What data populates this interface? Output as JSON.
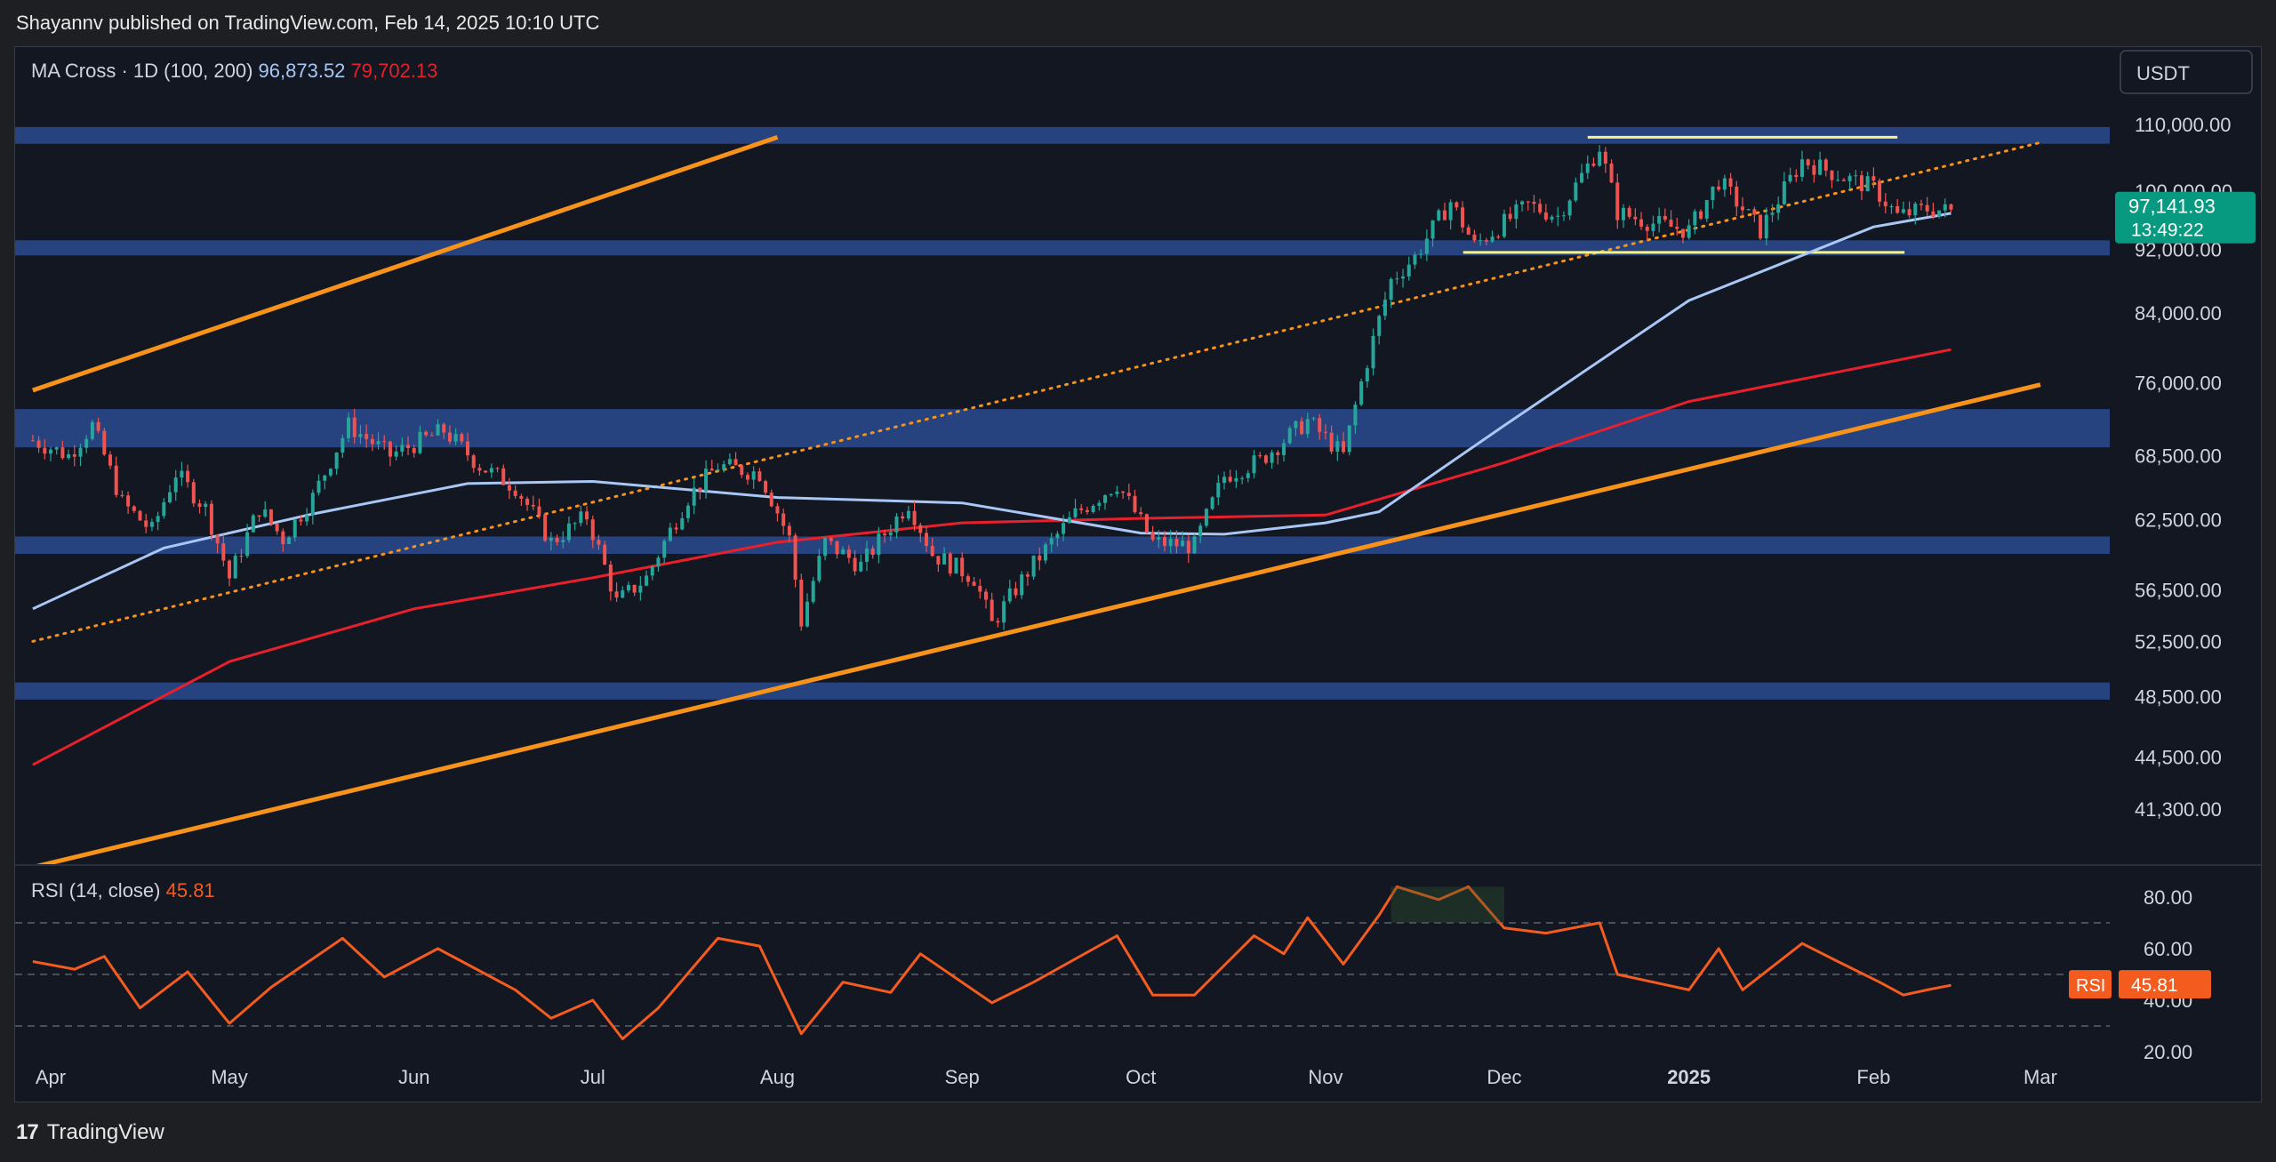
{
  "header": {
    "published": "Shayannv published on TradingView.com, Feb 14, 2025 10:10 UTC"
  },
  "footer": {
    "brand": "TradingView"
  },
  "colors": {
    "background": "#131722",
    "ma100": "#a9c7f5",
    "ma200": "#e8202c",
    "channel": "#f7931a",
    "zone": "#2a4a8f",
    "range_box": "#f5f58a",
    "rsi": "#f45b1f",
    "price_badge": "#089981",
    "up": "#26a69a",
    "down": "#ef5350"
  },
  "chart_data": [
    {
      "type": "candlestick",
      "title": "MA Cross · 1D (100, 200)",
      "currency": "USDT",
      "legend": {
        "ma100_value": "96,873.52",
        "ma200_value": "79,702.13"
      },
      "x_labels": [
        "Apr",
        "May",
        "Jun",
        "Jul",
        "Aug",
        "Sep",
        "Oct",
        "Nov",
        "Dec",
        "2025",
        "Feb",
        "Mar"
      ],
      "y_ticks": [
        "110,000.00",
        "100,000.00",
        "92,000.00",
        "84,000.00",
        "76,000.00",
        "68,500.00",
        "62,500.00",
        "56,500.00",
        "52,500.00",
        "48,500.00",
        "44,500.00",
        "41,300.00"
      ],
      "last_price": "97,141.93",
      "countdown": "13:49:22",
      "close_path": [
        {
          "d": "2024-03-29",
          "v": 70000
        },
        {
          "d": "2024-04-04",
          "v": 68500
        },
        {
          "d": "2024-04-08",
          "v": 71500
        },
        {
          "d": "2024-04-13",
          "v": 64000
        },
        {
          "d": "2024-04-18",
          "v": 61500
        },
        {
          "d": "2024-04-22",
          "v": 66800
        },
        {
          "d": "2024-04-27",
          "v": 63500
        },
        {
          "d": "2024-05-01",
          "v": 57500
        },
        {
          "d": "2024-05-06",
          "v": 63500
        },
        {
          "d": "2024-05-10",
          "v": 60800
        },
        {
          "d": "2024-05-15",
          "v": 64500
        },
        {
          "d": "2024-05-21",
          "v": 71500
        },
        {
          "d": "2024-05-28",
          "v": 68500
        },
        {
          "d": "2024-06-06",
          "v": 71000
        },
        {
          "d": "2024-06-12",
          "v": 67500
        },
        {
          "d": "2024-06-18",
          "v": 65500
        },
        {
          "d": "2024-06-24",
          "v": 60500
        },
        {
          "d": "2024-06-30",
          "v": 62800
        },
        {
          "d": "2024-07-05",
          "v": 55500
        },
        {
          "d": "2024-07-10",
          "v": 57500
        },
        {
          "d": "2024-07-17",
          "v": 64500
        },
        {
          "d": "2024-07-22",
          "v": 67500
        },
        {
          "d": "2024-07-29",
          "v": 66800
        },
        {
          "d": "2024-08-03",
          "v": 60800
        },
        {
          "d": "2024-08-05",
          "v": 54000
        },
        {
          "d": "2024-08-09",
          "v": 60500
        },
        {
          "d": "2024-08-15",
          "v": 58500
        },
        {
          "d": "2024-08-23",
          "v": 64000
        },
        {
          "d": "2024-08-27",
          "v": 59500
        },
        {
          "d": "2024-09-03",
          "v": 57500
        },
        {
          "d": "2024-09-06",
          "v": 53800
        },
        {
          "d": "2024-09-12",
          "v": 58000
        },
        {
          "d": "2024-09-20",
          "v": 63000
        },
        {
          "d": "2024-09-27",
          "v": 65800
        },
        {
          "d": "2024-10-03",
          "v": 60500
        },
        {
          "d": "2024-10-10",
          "v": 60200
        },
        {
          "d": "2024-10-15",
          "v": 66500
        },
        {
          "d": "2024-10-21",
          "v": 68000
        },
        {
          "d": "2024-10-29",
          "v": 72000
        },
        {
          "d": "2024-11-04",
          "v": 68500
        },
        {
          "d": "2024-11-07",
          "v": 76000
        },
        {
          "d": "2024-11-12",
          "v": 88000
        },
        {
          "d": "2024-11-16",
          "v": 91000
        },
        {
          "d": "2024-11-22",
          "v": 98500
        },
        {
          "d": "2024-11-26",
          "v": 92500
        },
        {
          "d": "2024-12-05",
          "v": 98000
        },
        {
          "d": "2024-12-10",
          "v": 96500
        },
        {
          "d": "2024-12-17",
          "v": 106500
        },
        {
          "d": "2024-12-20",
          "v": 97000
        },
        {
          "d": "2024-12-26",
          "v": 95500
        },
        {
          "d": "2025-01-01",
          "v": 94500
        },
        {
          "d": "2025-01-06",
          "v": 101500
        },
        {
          "d": "2025-01-13",
          "v": 94500
        },
        {
          "d": "2025-01-20",
          "v": 104500
        },
        {
          "d": "2025-01-27",
          "v": 102000
        },
        {
          "d": "2025-02-01",
          "v": 100500
        },
        {
          "d": "2025-02-05",
          "v": 96500
        },
        {
          "d": "2025-02-10",
          "v": 97500
        },
        {
          "d": "2025-02-14",
          "v": 97142
        }
      ],
      "ma100_path": [
        {
          "d": "2024-03-29",
          "v": 55000
        },
        {
          "d": "2024-04-20",
          "v": 60000
        },
        {
          "d": "2024-05-15",
          "v": 63000
        },
        {
          "d": "2024-06-10",
          "v": 65800
        },
        {
          "d": "2024-07-01",
          "v": 66000
        },
        {
          "d": "2024-08-01",
          "v": 64500
        },
        {
          "d": "2024-09-01",
          "v": 64000
        },
        {
          "d": "2024-10-01",
          "v": 61300
        },
        {
          "d": "2024-10-15",
          "v": 61200
        },
        {
          "d": "2024-11-01",
          "v": 62200
        },
        {
          "d": "2024-11-10",
          "v": 63200
        },
        {
          "d": "2024-12-01",
          "v": 71500
        },
        {
          "d": "2025-01-01",
          "v": 85500
        },
        {
          "d": "2025-02-01",
          "v": 95000
        },
        {
          "d": "2025-02-14",
          "v": 96874
        }
      ],
      "ma200_path": [
        {
          "d": "2024-03-29",
          "v": 44000
        },
        {
          "d": "2024-05-01",
          "v": 51000
        },
        {
          "d": "2024-06-01",
          "v": 55000
        },
        {
          "d": "2024-07-01",
          "v": 57500
        },
        {
          "d": "2024-08-01",
          "v": 60500
        },
        {
          "d": "2024-09-01",
          "v": 62200
        },
        {
          "d": "2024-10-01",
          "v": 62600
        },
        {
          "d": "2024-11-01",
          "v": 62900
        },
        {
          "d": "2024-12-01",
          "v": 67800
        },
        {
          "d": "2025-01-01",
          "v": 74000
        },
        {
          "d": "2025-02-14",
          "v": 79702
        }
      ],
      "annotations": {
        "channel_upper": [
          {
            "d": "2024-03-29",
            "v": 75200
          },
          {
            "d": "2024-08-01",
            "v": 108000
          }
        ],
        "channel_lower": [
          {
            "d": "2024-03-29",
            "v": 38000
          },
          {
            "d": "2025-03-01",
            "v": 75800
          }
        ],
        "dotted_trendline": [
          {
            "d": "2024-03-29",
            "v": 52500
          },
          {
            "d": "2025-03-01",
            "v": 107200
          }
        ],
        "horizontal_zones": [
          [
            107000,
            109600
          ],
          [
            91200,
            93200
          ],
          [
            69300,
            73200
          ],
          [
            59500,
            61000
          ],
          [
            48300,
            49500
          ]
        ],
        "range_box": {
          "from": "2024-12-15",
          "to": "2025-02-05",
          "top": 108000,
          "bottom": 91600
        }
      }
    },
    {
      "type": "line",
      "title": "RSI (14, close)",
      "value": "45.81",
      "badge_label": "RSI",
      "y_ticks": [
        "80.00",
        "60.00",
        "40.00",
        "20.00"
      ],
      "levels": [
        70,
        50,
        30
      ],
      "path": [
        {
          "d": "2024-03-29",
          "v": 55
        },
        {
          "d": "2024-04-05",
          "v": 52
        },
        {
          "d": "2024-04-10",
          "v": 57
        },
        {
          "d": "2024-04-16",
          "v": 37
        },
        {
          "d": "2024-04-24",
          "v": 51
        },
        {
          "d": "2024-05-01",
          "v": 31
        },
        {
          "d": "2024-05-08",
          "v": 45
        },
        {
          "d": "2024-05-20",
          "v": 64
        },
        {
          "d": "2024-05-27",
          "v": 49
        },
        {
          "d": "2024-06-05",
          "v": 60
        },
        {
          "d": "2024-06-18",
          "v": 44
        },
        {
          "d": "2024-06-24",
          "v": 33
        },
        {
          "d": "2024-07-01",
          "v": 40
        },
        {
          "d": "2024-07-06",
          "v": 25
        },
        {
          "d": "2024-07-12",
          "v": 37
        },
        {
          "d": "2024-07-22",
          "v": 64
        },
        {
          "d": "2024-07-29",
          "v": 61
        },
        {
          "d": "2024-08-05",
          "v": 27
        },
        {
          "d": "2024-08-12",
          "v": 47
        },
        {
          "d": "2024-08-20",
          "v": 43
        },
        {
          "d": "2024-08-25",
          "v": 58
        },
        {
          "d": "2024-09-06",
          "v": 39
        },
        {
          "d": "2024-09-13",
          "v": 47
        },
        {
          "d": "2024-09-27",
          "v": 65
        },
        {
          "d": "2024-10-03",
          "v": 42
        },
        {
          "d": "2024-10-10",
          "v": 42
        },
        {
          "d": "2024-10-20",
          "v": 65
        },
        {
          "d": "2024-10-25",
          "v": 58
        },
        {
          "d": "2024-10-29",
          "v": 72
        },
        {
          "d": "2024-11-04",
          "v": 54
        },
        {
          "d": "2024-11-10",
          "v": 73
        },
        {
          "d": "2024-11-13",
          "v": 84
        },
        {
          "d": "2024-11-20",
          "v": 79
        },
        {
          "d": "2024-11-25",
          "v": 84
        },
        {
          "d": "2024-12-01",
          "v": 68
        },
        {
          "d": "2024-12-08",
          "v": 66
        },
        {
          "d": "2024-12-17",
          "v": 70
        },
        {
          "d": "2024-12-20",
          "v": 50
        },
        {
          "d": "2024-12-26",
          "v": 47
        },
        {
          "d": "2025-01-01",
          "v": 44
        },
        {
          "d": "2025-01-06",
          "v": 60
        },
        {
          "d": "2025-01-10",
          "v": 44
        },
        {
          "d": "2025-01-20",
          "v": 62
        },
        {
          "d": "2025-01-26",
          "v": 55
        },
        {
          "d": "2025-02-02",
          "v": 47
        },
        {
          "d": "2025-02-06",
          "v": 42
        },
        {
          "d": "2025-02-10",
          "v": 44
        },
        {
          "d": "2025-02-14",
          "v": 45.81
        }
      ]
    }
  ]
}
